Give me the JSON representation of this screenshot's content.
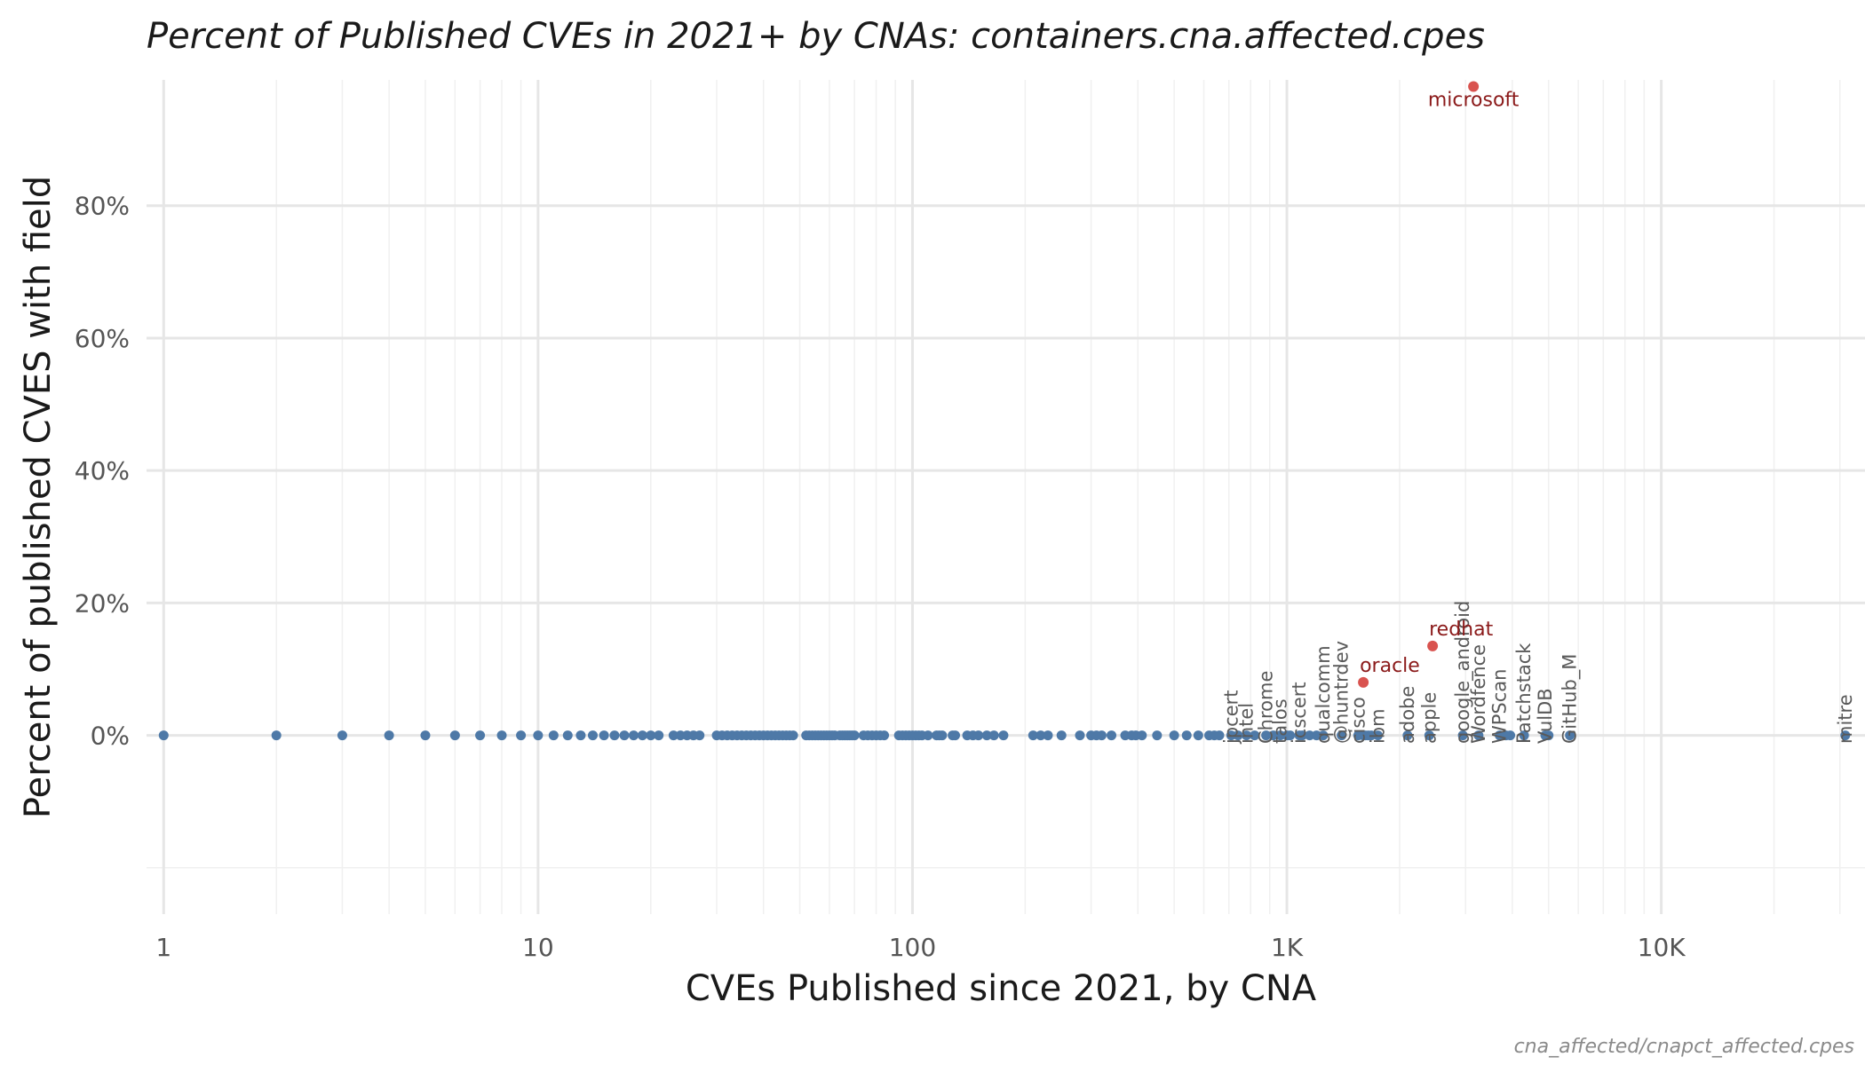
{
  "chart_data": {
    "type": "scatter",
    "title": "Percent of Published CVEs in 2021+ by CNAs: containers.cna.affected.cpes",
    "xlabel": "CVEs Published since 2021, by CNA",
    "ylabel": "Percent of published CVES with field",
    "caption": "cna_affected/cnapct_affected.cpes",
    "x_scale": "log10",
    "xlim": [
      0.9,
      35000
    ],
    "ylim": [
      -27,
      99
    ],
    "x_ticks": [
      {
        "value": 1,
        "label": "1"
      },
      {
        "value": 10,
        "label": "10"
      },
      {
        "value": 100,
        "label": "100"
      },
      {
        "value": 1000,
        "label": "1K"
      },
      {
        "value": 10000,
        "label": "10K"
      }
    ],
    "y_ticks": [
      {
        "value": 0,
        "label": "0%"
      },
      {
        "value": 20,
        "label": "20%"
      },
      {
        "value": 40,
        "label": "40%"
      },
      {
        "value": 60,
        "label": "60%"
      },
      {
        "value": 80,
        "label": "80%"
      }
    ],
    "grid": true,
    "highlight_color": "#d9534f",
    "highlight_label_color": "#8b1a1a",
    "base_color": "#4e79a7",
    "highlighted": [
      {
        "name": "microsoft",
        "x": 3150,
        "y": 98
      },
      {
        "name": "redhat",
        "x": 2450,
        "y": 13.5
      },
      {
        "name": "oracle",
        "x": 1600,
        "y": 8
      }
    ],
    "labeled_zero": [
      {
        "name": "jpcert",
        "x": 710
      },
      {
        "name": "intel",
        "x": 780
      },
      {
        "name": "Chrome",
        "x": 880
      },
      {
        "name": "talos",
        "x": 960
      },
      {
        "name": "icscert",
        "x": 1080
      },
      {
        "name": "qualcomm",
        "x": 1250
      },
      {
        "name": "@huntrdev",
        "x": 1400
      },
      {
        "name": "cisco",
        "x": 1550
      },
      {
        "name": "ibm",
        "x": 1750
      },
      {
        "name": "adobe",
        "x": 2100
      },
      {
        "name": "apple",
        "x": 2400
      },
      {
        "name": "google_android",
        "x": 2950
      },
      {
        "name": "Wordfence",
        "x": 3250
      },
      {
        "name": "WPScan",
        "x": 3700
      },
      {
        "name": "Patchstack",
        "x": 4300
      },
      {
        "name": "VulDB",
        "x": 4900
      },
      {
        "name": "GitHub_M",
        "x": 5700
      },
      {
        "name": "mitre",
        "x": 31000
      }
    ],
    "unlabeled_zero_x": [
      1,
      2,
      3,
      4,
      5,
      6,
      7,
      8,
      9,
      10,
      11,
      12,
      13,
      14,
      15,
      16,
      17,
      18,
      19,
      20,
      21,
      23,
      24,
      25,
      26,
      27,
      30,
      31,
      32,
      33,
      34,
      35,
      36,
      37,
      38,
      39,
      40,
      41,
      42,
      43,
      44,
      45,
      46,
      47,
      48,
      52,
      53,
      54,
      55,
      56,
      57,
      58,
      59,
      60,
      61,
      62,
      64,
      65,
      66,
      67,
      68,
      69,
      70,
      74,
      76,
      78,
      80,
      82,
      84,
      92,
      94,
      96,
      98,
      100,
      102,
      104,
      106,
      110,
      116,
      118,
      120,
      128,
      130,
      140,
      145,
      150,
      158,
      165,
      175,
      210,
      220,
      230,
      250,
      280,
      300,
      310,
      320,
      340,
      370,
      385,
      395,
      410,
      450,
      500,
      540,
      580,
      620,
      640,
      660,
      740,
      820,
      920,
      1000,
      1020,
      1100,
      1150,
      1200,
      1600,
      1620,
      1650,
      1680,
      3850,
      3950,
      5000
    ]
  }
}
